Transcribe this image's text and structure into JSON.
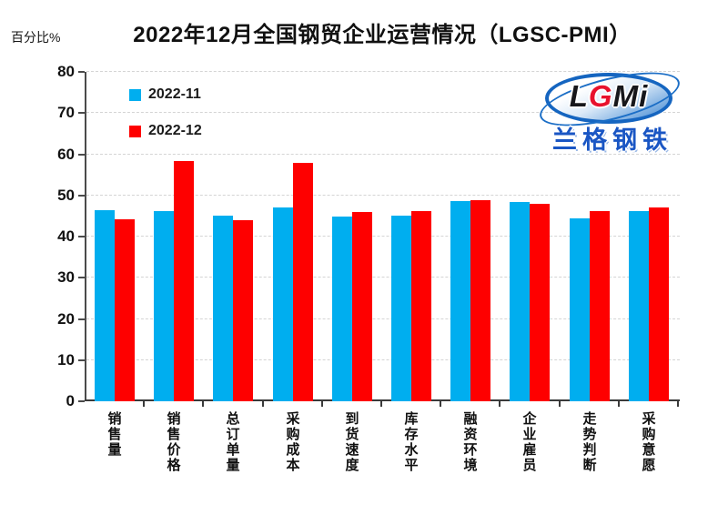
{
  "header": {
    "title": "2022年12月全国钢贸企业运营情况（LGSC-PMI）",
    "y_axis_unit_label": "百分比%"
  },
  "legend": {
    "items": [
      {
        "label": "2022-11",
        "color": "#00AEEF"
      },
      {
        "label": "2022-12",
        "color": "#FE0000"
      }
    ]
  },
  "logo": {
    "letters": [
      {
        "char": "L",
        "color": "#17171b"
      },
      {
        "char": "G",
        "color": "#e8112d"
      },
      {
        "char": "M",
        "color": "#17171b"
      },
      {
        "char": "i",
        "color": "#17171b"
      }
    ],
    "subtext": "兰格钢铁",
    "ellipse_color": "#1565c0",
    "subtext_color": "#1a56c4"
  },
  "chart_data": {
    "type": "bar",
    "title": "2022年12月全国钢贸企业运营情况（LGSC-PMI）",
    "ylabel": "百分比%",
    "ylim": [
      0,
      80
    ],
    "ytick_step": 10,
    "grid": "horizontal-dashed",
    "grid_color": "#d4d4d4",
    "axis_color": "#3a3a3a",
    "legend_position": "top-left-inside",
    "categories": [
      "销售量",
      "销售价格",
      "总订单量",
      "采购成本",
      "到货速度",
      "库存水平",
      "融资环境",
      "企业雇员",
      "走势判断",
      "采购意愿"
    ],
    "series": [
      {
        "name": "2022-11",
        "color": "#00AEEF",
        "values": [
          46.4,
          46.3,
          45.1,
          47.0,
          44.9,
          45.2,
          48.6,
          48.4,
          44.5,
          46.3
        ]
      },
      {
        "name": "2022-12",
        "color": "#FE0000",
        "values": [
          44.1,
          58.4,
          44.0,
          57.9,
          46.0,
          46.1,
          48.9,
          48.0,
          46.1,
          47.0
        ]
      }
    ]
  }
}
